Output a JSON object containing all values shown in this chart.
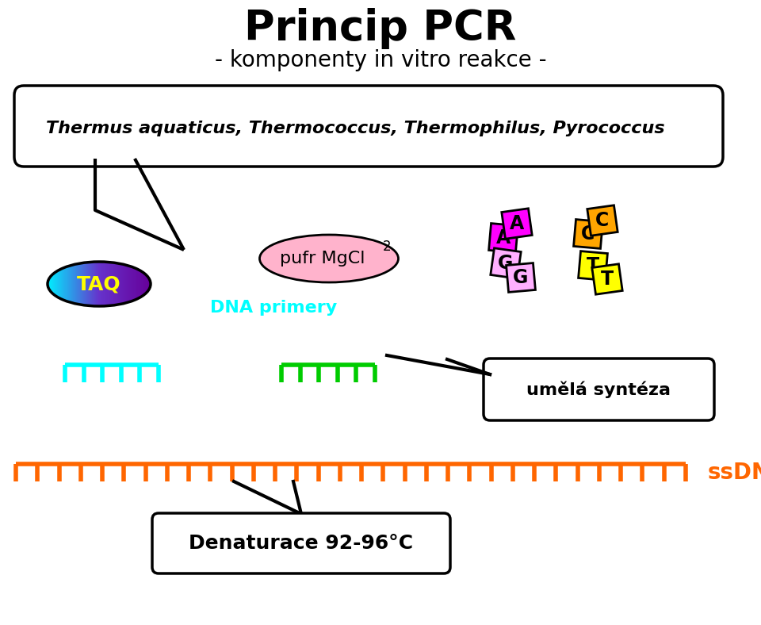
{
  "title": "Princip PCR",
  "subtitle": "- komponenty in vitro reakce -",
  "bacteria_text": "Thermus aquaticus, Thermococcus, Thermophilus, Pyrococcus",
  "taq_label": "TAQ",
  "dna_primery_label": "DNA primery",
  "umela_synteza_label": "umělá syntéza",
  "ssdna_label": "ssDNA",
  "denaturace_label": "Denaturace 92-96°C",
  "bg_color": "#ffffff",
  "title_color": "#000000",
  "cyan_color": "#00FFFF",
  "green_color": "#00CC00",
  "orange_color": "#FF6600",
  "magenta_color": "#FF00FF",
  "pink_light_color": "#FFB0FF",
  "orange_nt_color": "#FFA500",
  "yellow_color": "#FFFF00",
  "pufr_ellipse_color": "#FFB3CC"
}
